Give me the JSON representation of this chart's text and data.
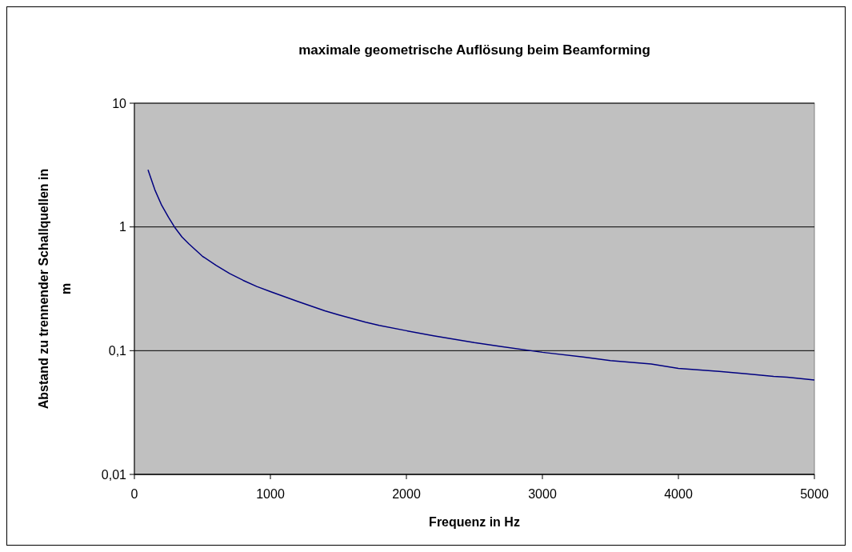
{
  "chart_data": {
    "type": "line",
    "title": "maximale geometrische Auflösung beim Beamforming",
    "xlabel": "Frequenz in Hz",
    "ylabel": "Abstand zu trennender Schallquellen in m",
    "x": [
      100,
      150,
      200,
      250,
      300,
      350,
      400,
      500,
      600,
      700,
      800,
      900,
      1000,
      1200,
      1400,
      1500,
      1700,
      1800,
      2000,
      2200,
      2500,
      2700,
      3000,
      3300,
      3500,
      3800,
      4000,
      4300,
      4500,
      4700,
      4800,
      5000
    ],
    "series": [
      {
        "color": "#000080",
        "values": [
          2.9,
          2.0,
          1.5,
          1.2,
          0.98,
          0.83,
          0.73,
          0.58,
          0.49,
          0.42,
          0.37,
          0.33,
          0.3,
          0.25,
          0.21,
          0.195,
          0.17,
          0.16,
          0.145,
          0.132,
          0.116,
          0.108,
          0.097,
          0.089,
          0.083,
          0.078,
          0.072,
          0.068,
          0.065,
          0.062,
          0.061,
          0.058
        ]
      }
    ],
    "xlim": [
      0,
      5000
    ],
    "xticks": [
      0,
      1000,
      2000,
      3000,
      4000,
      5000
    ],
    "ylim": [
      0.01,
      10
    ],
    "yticks": [
      {
        "value": 0.01,
        "label": "0,01"
      },
      {
        "value": 0.1,
        "label": "0,1"
      },
      {
        "value": 1,
        "label": "1"
      },
      {
        "value": 10,
        "label": "10"
      }
    ],
    "log": "y",
    "grid": "y",
    "marker": "none",
    "line_style": "solid"
  }
}
